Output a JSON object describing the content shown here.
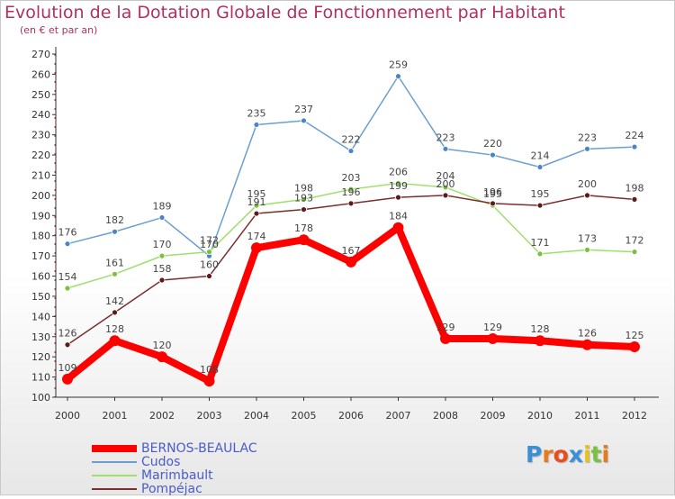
{
  "title": "Evolution de la Dotation Globale de Fonctionnement par Habitant",
  "subtitle": "(en € et par an)",
  "brand": {
    "letters": [
      "P",
      "r",
      "o",
      "x",
      "i",
      "t",
      "i"
    ],
    "colors": [
      "#3a8fd6",
      "#e87a1c",
      "#e84d1c",
      "#3a8fd6",
      "#e8c21c",
      "#7bc043",
      "#e87a1c"
    ]
  },
  "colors": {
    "title": "#b03060",
    "axis": "#333333",
    "grid_dash": "#cc3344",
    "label": "#444444"
  },
  "chart_data": {
    "type": "line",
    "title": "Evolution de la Dotation Globale de Fonctionnement par Habitant",
    "subtitle": "(en € et par an)",
    "xlabel": "",
    "ylabel": "",
    "ylim": [
      100,
      270
    ],
    "ytick_step": 10,
    "yticks": [
      "100",
      "110",
      "120",
      "130",
      "140",
      "150",
      "160",
      "170",
      "180",
      "190",
      "200",
      "210",
      "220",
      "230",
      "240",
      "250",
      "260",
      "270"
    ],
    "categories": [
      "2000",
      "2001",
      "2002",
      "2003",
      "2004",
      "2005",
      "2006",
      "2007",
      "2008",
      "2009",
      "2010",
      "2011",
      "2012"
    ],
    "series": [
      {
        "name": "Cudos",
        "color": "#6a9fcf",
        "marker_color": "#4a86c5",
        "values": [
          176,
          182,
          189,
          170,
          235,
          237,
          222,
          259,
          223,
          220,
          214,
          223,
          224
        ],
        "labels": [
          "176",
          "182",
          "189",
          "170",
          "235",
          "237",
          "222",
          "259",
          "223",
          "220",
          "214",
          "223",
          "224"
        ]
      },
      {
        "name": "Marimbault",
        "color": "#9ee06a",
        "marker_color": "#7bc043",
        "values": [
          154,
          161,
          170,
          172,
          195,
          198,
          203,
          206,
          204,
          195,
          171,
          173,
          172
        ],
        "labels": [
          "154",
          "161",
          "170",
          "172",
          "195",
          "198",
          "203",
          "206",
          "204",
          "195",
          "171",
          "173",
          "172"
        ]
      },
      {
        "name": "Pompéjac",
        "color": "#7a2e2e",
        "marker_color": "#5e1a1a",
        "values": [
          126,
          142,
          158,
          160,
          191,
          193,
          196,
          199,
          200,
          196,
          195,
          200,
          198
        ],
        "labels": [
          "126",
          "142",
          "158",
          "160",
          "191",
          "193",
          "196",
          "199",
          "200",
          "196",
          "195",
          "200",
          "198"
        ]
      },
      {
        "name": "BERNOS-BEAULAC",
        "color": "#ff0000",
        "marker_color": "#ff0000",
        "values": [
          109,
          128,
          120,
          108,
          174,
          178,
          167,
          184,
          129,
          129,
          128,
          126,
          125
        ],
        "labels": [
          "109",
          "128",
          "120",
          "108",
          "174",
          "178",
          "167",
          "184",
          "129",
          "129",
          "128",
          "126",
          "125"
        ]
      }
    ],
    "legend": [
      {
        "name": "BERNOS-BEAULAC",
        "color": "#ff0000",
        "text_color": "#4a5cc9",
        "thick": true
      },
      {
        "name": "Cudos",
        "color": "#6a9fcf",
        "text_color": "#4a5cc9",
        "thick": false
      },
      {
        "name": "Marimbault",
        "color": "#9ee06a",
        "text_color": "#4a5cc9",
        "thick": false
      },
      {
        "name": "Pompéjac",
        "color": "#7a2e2e",
        "text_color": "#4a5cc9",
        "thick": false
      }
    ],
    "legend_position": "bottom-left"
  }
}
